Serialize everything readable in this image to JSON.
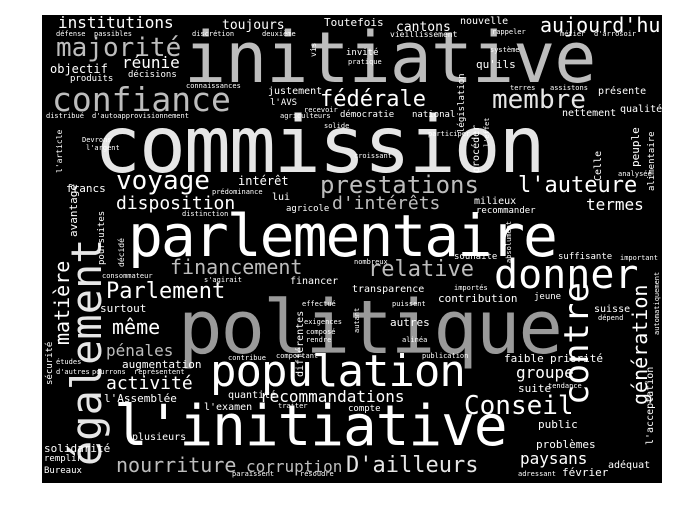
{
  "colors": {
    "background": "#000000",
    "page": "#ffffff",
    "light": "#e6e6e6",
    "mid": "#bdbdbd",
    "dim": "#9a9a9a"
  },
  "cloud": {
    "big": {
      "commission": "commission",
      "parlementaire": "parlementaire",
      "politique": "politique",
      "initiative": "initiative",
      "linitiative": "l'initiative",
      "population": "population",
      "egalement": "également",
      "donner": "donner",
      "confiance": "confiance",
      "majorite": "majorité",
      "prestations": "prestations",
      "voyage": "voyage",
      "contre": "contre",
      "conseil": "Conseil",
      "federale": "fédérale",
      "membre": "membre",
      "parlement": "Parlement",
      "financement": "financement",
      "relative": "relative",
      "lauteure": "l'auteure",
      "nourriture": "nourriture",
      "dailleurs": "D'ailleurs",
      "generation": "génération",
      "matiere": "matière",
      "meme": "même",
      "activite": "activité",
      "aujourdhui": "aujourd'hui",
      "institutions": "institutions",
      "recommandations": "recommandations",
      "dinterets": "d'intérêts",
      "disposition": "disposition",
      "corruption": "corruption",
      "penales": "pénales",
      "reunie": "réunie",
      "groupe": "groupe",
      "paysans": "paysans",
      "termes": "termes"
    },
    "small": {
      "toujours": "toujours",
      "toutefois": "Toutefois",
      "cantons": "cantons",
      "nouvelle": "nouvelle",
      "defense": "défense",
      "passibles": "passibles",
      "discretion": "discrétion",
      "deuxieme": "deuxième",
      "vieillissement": "vieillissement",
      "rappeler": "rappeler",
      "metier": "métier",
      "darrosoir": "d'arrosoir",
      "objectif": "objectif",
      "produits": "produits",
      "decisions": "décisions",
      "vis": "vis",
      "invite": "invité",
      "pratique": "pratique",
      "quils": "qu'ils",
      "systeme": "système",
      "connaissances": "connaissances",
      "justement": "justement",
      "lavs": "l'AVS",
      "recevoir": "recevoir",
      "agriculteurs": "agriculteurs",
      "democratie": "démocratie",
      "national": "national",
      "terres": "terres",
      "assistons": "assistons",
      "presente": "présente",
      "qualite": "qualité",
      "distribue": "distribué",
      "dautoapprovisionnement": "d'autoapprovisionnement",
      "nettement": "nettement",
      "legislation": "législation",
      "solide": "solide",
      "participer": "participer",
      "proceder": "procéder",
      "peuple": "peuple",
      "devrons": "Devrons",
      "largent": "l'argent",
      "croissant": "croissant",
      "celle": "Celle",
      "alimentaire": "alimentaire",
      "larticle": "l'article",
      "avantage": "avantage",
      "francs": "francs",
      "interet": "intérêt",
      "predominance": "prédominance",
      "distinction": "distinction",
      "lui": "lui",
      "agricole": "agricole",
      "milieux": "milieux",
      "recommander": "recommander",
      "analysee": "analysée",
      "poursuites": "poursuites",
      "decide": "décidé",
      "consommateur": "consommateur",
      "sagirait": "s'agirait",
      "nombreux": "nombreux",
      "souhaite": "souhaite",
      "suffisante": "suffisante",
      "important": "important",
      "automatiquement": "automatiquement",
      "financer": "financer",
      "transparence": "transparence",
      "importes": "importés",
      "contribution": "contribution",
      "jeune": "jeune",
      "surtout": "surtout",
      "effectue": "effectué",
      "puissent": "puissent",
      "suisse": "suisse",
      "exigences": "exigences",
      "compose": "composé",
      "rendre": "rendre",
      "differentes": "différentes",
      "autant": "autant",
      "autres": "autres",
      "alinea": "alinéa",
      "securite": "sécurité",
      "contribue": "contribue",
      "comportant": "comportant",
      "publication": "publication",
      "faible": "faible",
      "priorite": "priorité",
      "etudes": "études",
      "augmentation": "augmentation",
      "dautres": "d'autres",
      "pourrons": "pourrons",
      "representent": "représentent",
      "suite": "suite",
      "tendance": "tendance",
      "lassemblee": "l'Assemblée",
      "quantite": "quantité",
      "traiter": "traiter",
      "compte": "compte",
      "lexamen": "l'examen",
      "public": "public",
      "lacceptation": "l'acceptation",
      "depend": "dépend",
      "plusieurs": "plusieurs",
      "problemes": "problèmes",
      "solidarite": "solidarité",
      "remplir": "remplir",
      "bureaux": "Bureaux",
      "paraissent": "paraissent",
      "resoudre": "résoudre",
      "adressant": "adressant",
      "fevrier": "février",
      "adequat": "adéquat",
      "leffet": "l'effet",
      "absolument": "absolument"
    }
  }
}
